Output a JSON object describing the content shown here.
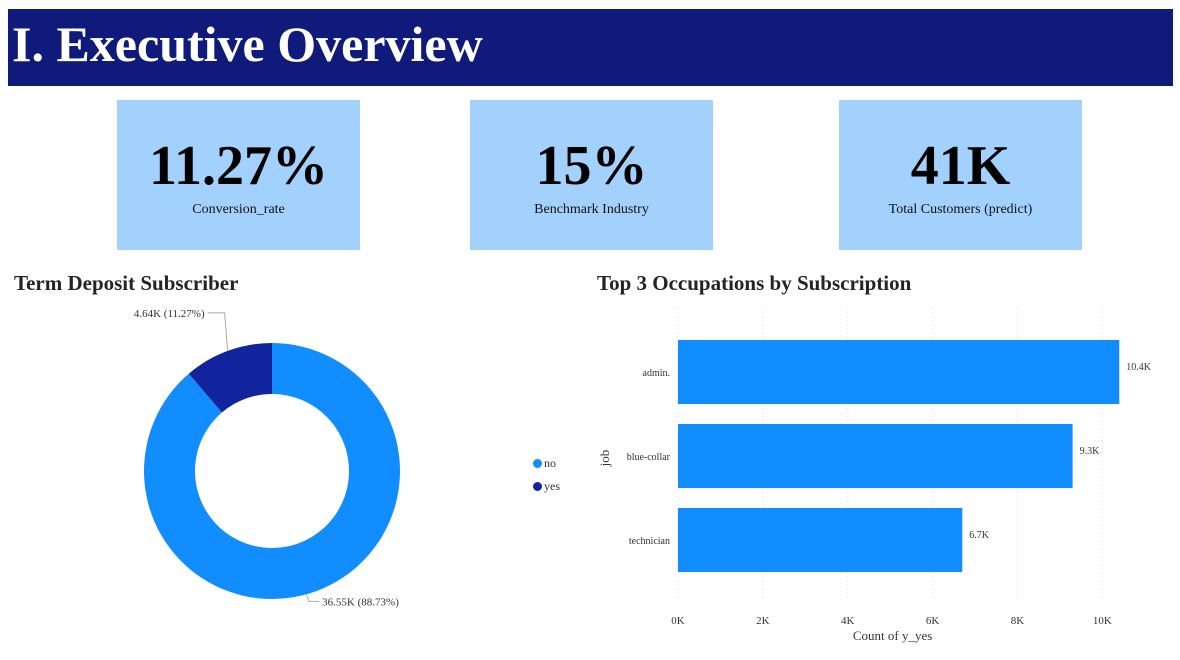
{
  "header": {
    "title": "I. Executive Overview"
  },
  "kpis": [
    {
      "value": "11.27%",
      "label": "Conversion_rate"
    },
    {
      "value": "15%",
      "label": "Benchmark Industry"
    },
    {
      "value": "41K",
      "label": "Total Customers (predict)"
    }
  ],
  "donut": {
    "title": "Term Deposit Subscriber",
    "legend": [
      {
        "label": "no",
        "color": "#118dff"
      },
      {
        "label": "yes",
        "color": "#12239e"
      }
    ]
  },
  "bars": {
    "title": "Top 3 Occupations by Subscription"
  },
  "chart_data": [
    {
      "type": "pie",
      "title": "Term Deposit Subscriber",
      "labels": [
        "no",
        "yes"
      ],
      "values": [
        36550,
        4640
      ],
      "percentages": [
        88.73,
        11.27
      ],
      "data_labels": [
        "36.55K (88.73%)",
        "4.64K (11.27%)"
      ],
      "colors": [
        "#118dff",
        "#12239e"
      ],
      "legend_position": "right"
    },
    {
      "type": "bar",
      "orientation": "horizontal",
      "title": "Top 3 Occupations by Subscription",
      "categories": [
        "admin.",
        "blue-collar",
        "technician"
      ],
      "values": [
        10400,
        9300,
        6700
      ],
      "data_labels": [
        "10.4K",
        "9.3K",
        "6.7K"
      ],
      "xlabel": "Count of y_yes",
      "ylabel": "job",
      "xlim": [
        0,
        11000
      ],
      "xticks": [
        0,
        2000,
        4000,
        6000,
        8000,
        10000
      ],
      "xtick_labels": [
        "0K",
        "2K",
        "4K",
        "6K",
        "8K",
        "10K"
      ],
      "color": "#118dff",
      "grid": true
    }
  ]
}
